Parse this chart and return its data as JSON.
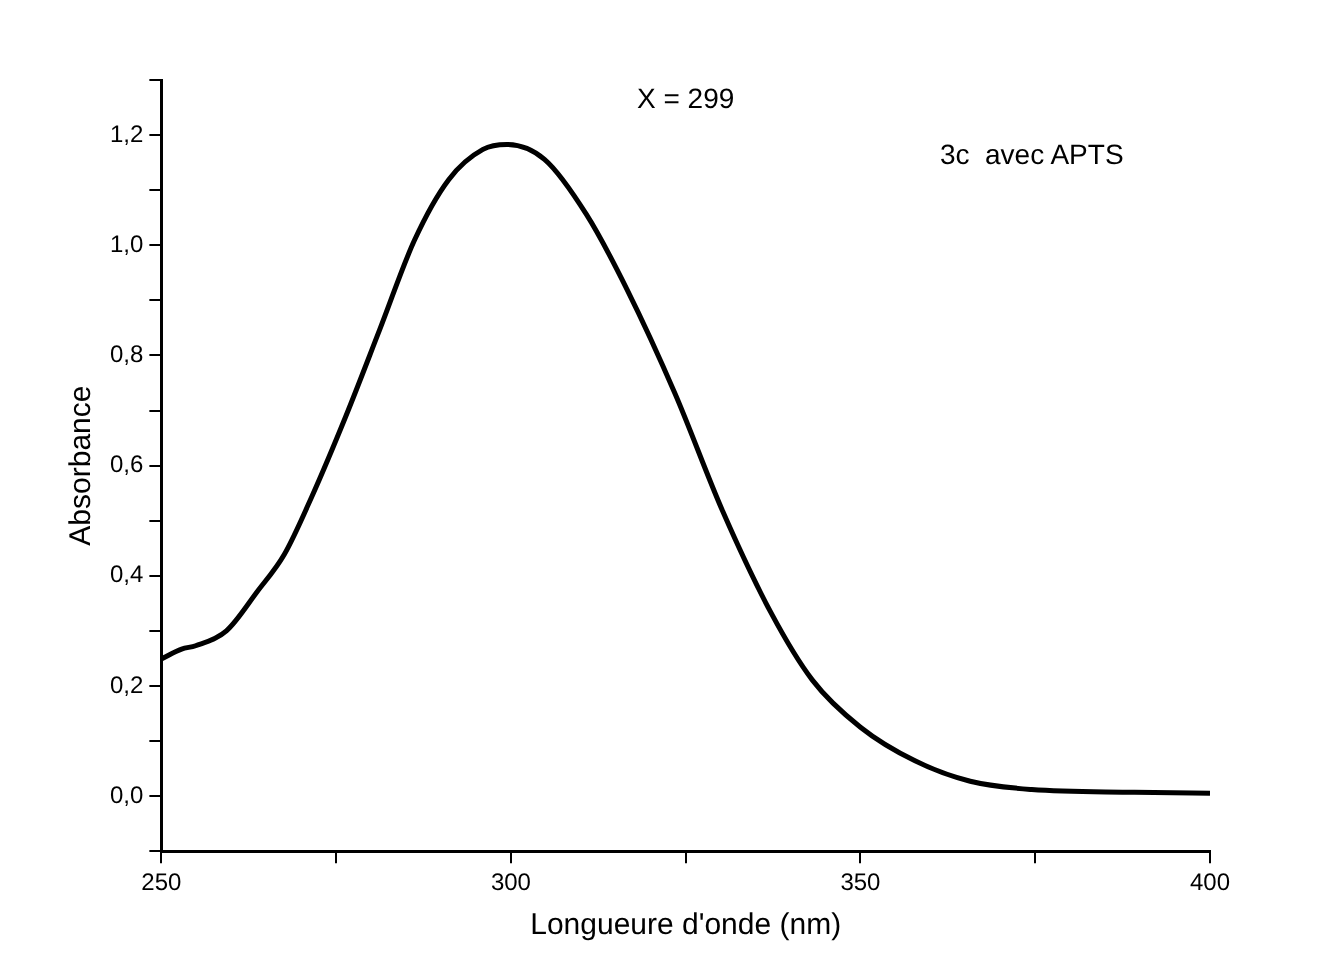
{
  "chart_data": {
    "type": "line",
    "xlabel": "Longueure d'onde (nm)",
    "ylabel": "Absorbance",
    "annotations": [
      "X = 299",
      "3c  avec APTS"
    ],
    "series": [
      {
        "color": "#000000",
        "x": [
          250,
          252.9,
          254.9,
          259.3,
          263.7,
          267.6,
          271.5,
          276.4,
          281.3,
          286.2,
          291.1,
          296,
          299.4,
          304.8,
          310.8,
          316.6,
          323.5,
          330.3,
          337.2,
          343.1,
          350,
          357.8,
          365.7,
          374.5,
          389.2,
          400
        ],
        "values": [
          0.249,
          0.267,
          0.273,
          0.3,
          0.371,
          0.439,
          0.543,
          0.69,
          0.849,
          1.009,
          1.119,
          1.174,
          1.183,
          1.156,
          1.056,
          0.92,
          0.73,
          0.517,
          0.333,
          0.211,
          0.125,
          0.064,
          0.027,
          0.012,
          0.007,
          0.005
        ]
      }
    ],
    "xlim": [
      250,
      400
    ],
    "xticks": [
      250,
      {
        "value": 275,
        "label": null
      },
      300,
      {
        "value": 325,
        "label": null
      },
      350,
      {
        "value": 375,
        "label": null
      },
      400
    ],
    "ylim": [
      -0.1,
      1.3
    ],
    "yticks": [
      {
        "value": -0.1,
        "label": null
      },
      {
        "value": 0,
        "label": "0,0"
      },
      {
        "value": 0.1,
        "label": null
      },
      {
        "value": 0.2,
        "label": "0,2"
      },
      {
        "value": 0.3,
        "label": null
      },
      {
        "value": 0.4,
        "label": "0,4"
      },
      {
        "value": 0.5,
        "label": null
      },
      {
        "value": 0.6,
        "label": "0,6"
      },
      {
        "value": 0.7,
        "label": null
      },
      {
        "value": 0.8,
        "label": "0,8"
      },
      {
        "value": 0.9,
        "label": null
      },
      {
        "value": 1.0,
        "label": "1,0"
      },
      {
        "value": 1.1,
        "label": null
      },
      {
        "value": 1.2,
        "label": "1,2"
      },
      {
        "value": 1.3,
        "label": null
      }
    ],
    "grid": false,
    "legend": false,
    "marker": "none",
    "line_style": "solid"
  }
}
